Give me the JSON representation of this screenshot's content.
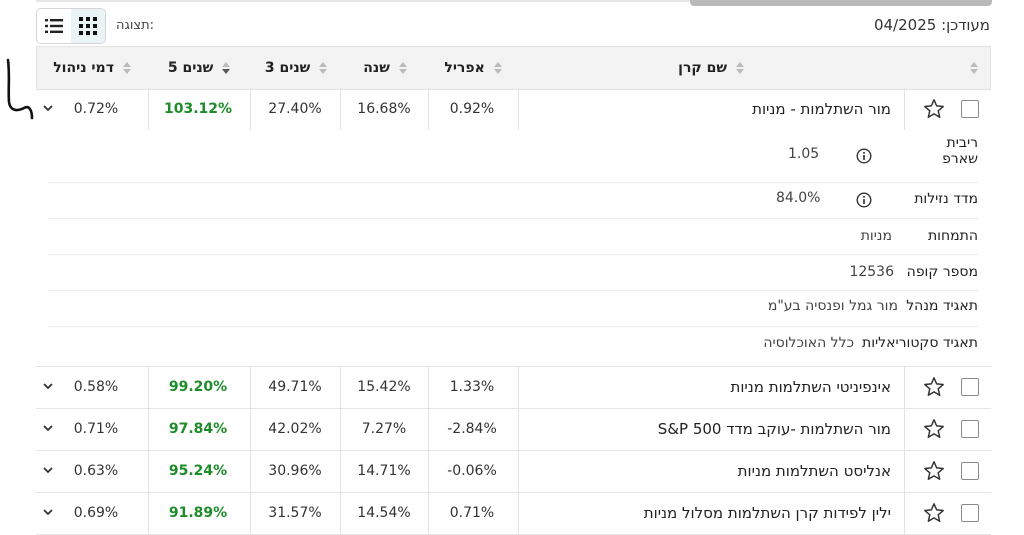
{
  "header": {
    "updated_label": "מעודכן: 04/2025",
    "view_label": "תצוגה:"
  },
  "columns": {
    "fund_name": "שם קרן",
    "april": "אפריל",
    "year": "שנה",
    "three_years": "3 שנים",
    "five_years": "5 שנים",
    "mgmt_fee": "דמי ניהול"
  },
  "funds": [
    {
      "name": "מור השתלמות - מניות",
      "april": "0.92%",
      "year": "16.68%",
      "three_years": "27.40%",
      "five_years": "103.12%",
      "fee": "0.72%"
    },
    {
      "name": "אינפיניטי השתלמות מניות",
      "april": "1.33%",
      "year": "15.42%",
      "three_years": "49.71%",
      "five_years": "99.20%",
      "fee": "0.58%"
    },
    {
      "name": "מור השתלמות -עוקב מדד S&P 500",
      "april": "-2.84%",
      "year": "7.27%",
      "three_years": "42.02%",
      "five_years": "97.84%",
      "fee": "0.71%"
    },
    {
      "name": "אנליסט השתלמות מניות",
      "april": "-0.06%",
      "year": "14.71%",
      "three_years": "30.96%",
      "five_years": "95.24%",
      "fee": "0.63%"
    },
    {
      "name": "ילין לפידות קרן השתלמות מסלול מניות",
      "april": "0.71%",
      "year": "14.54%",
      "three_years": "31.57%",
      "five_years": "91.89%",
      "fee": "0.69%"
    }
  ],
  "details": {
    "sharpe_label": "ריבית שארפ",
    "sharpe_value": "1.05",
    "liquidity_label": "מדד נזילות",
    "liquidity_value": "84.0%",
    "specialization_label": "התמחות",
    "specialization_value": "מניות",
    "fund_number_label": "מספר קופה",
    "fund_number_value": "12536",
    "manager_label": "תאגיד מנהל",
    "manager_value": "מור גמל ופנסיה בע\"מ",
    "actuarial_label": "תאגיד סקטוריאליות",
    "actuarial_value": "כלל האוכלוסיה"
  },
  "colors": {
    "positive_green": "#1e8c2a",
    "header_bg": "#f3f3f3",
    "active_toggle_bg": "#e8f4f6"
  }
}
